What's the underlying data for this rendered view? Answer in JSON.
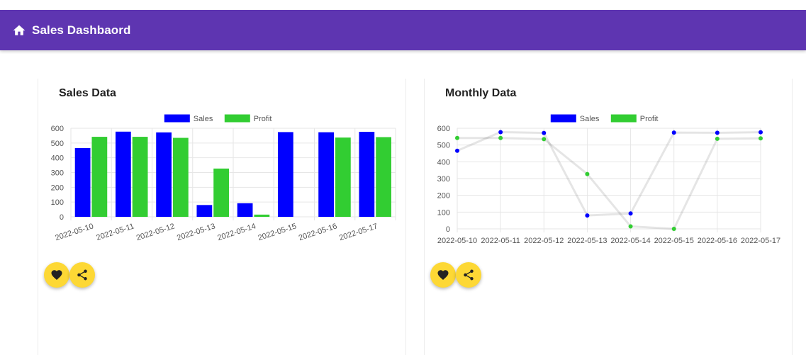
{
  "toolbar": {
    "title": "Sales Dashbaord",
    "icon": "home-icon",
    "background": "#5e35b1"
  },
  "cards": [
    {
      "title": "Sales Data"
    },
    {
      "title": "Monthly Data"
    }
  ],
  "actions": {
    "like_icon": "heart-icon",
    "share_icon": "share-icon",
    "fab_color": "#fdd835"
  },
  "chart_data": [
    {
      "type": "bar",
      "title": "",
      "categories": [
        "2022-05-10",
        "2022-05-11",
        "2022-05-12",
        "2022-05-13",
        "2022-05-14",
        "2022-05-15",
        "2022-05-16",
        "2022-05-17"
      ],
      "series": [
        {
          "name": "Sales",
          "color": "#0000ff",
          "values": [
            466,
            577,
            572,
            80,
            92,
            574,
            573,
            576
          ]
        },
        {
          "name": "Profit",
          "color": "#32cd32",
          "values": [
            542,
            542,
            535,
            327,
            15,
            0,
            537,
            540
          ]
        }
      ],
      "yticks": [
        0,
        100,
        200,
        300,
        400,
        500,
        600
      ],
      "ylim": [
        0,
        600
      ],
      "legend": "top-center",
      "grid": true
    },
    {
      "type": "line",
      "title": "",
      "categories": [
        "2022-05-10",
        "2022-05-11",
        "2022-05-12",
        "2022-05-13",
        "2022-05-14",
        "2022-05-15",
        "2022-05-16",
        "2022-05-17"
      ],
      "series": [
        {
          "name": "Sales",
          "color": "#0000ff",
          "values": [
            466,
            577,
            572,
            80,
            92,
            574,
            573,
            576
          ]
        },
        {
          "name": "Profit",
          "color": "#32cd32",
          "values": [
            542,
            542,
            535,
            327,
            15,
            0,
            537,
            540
          ]
        }
      ],
      "yticks": [
        0,
        100,
        200,
        300,
        400,
        500,
        600
      ],
      "ylim": [
        0,
        600
      ],
      "legend": "top-center",
      "grid": true
    }
  ]
}
